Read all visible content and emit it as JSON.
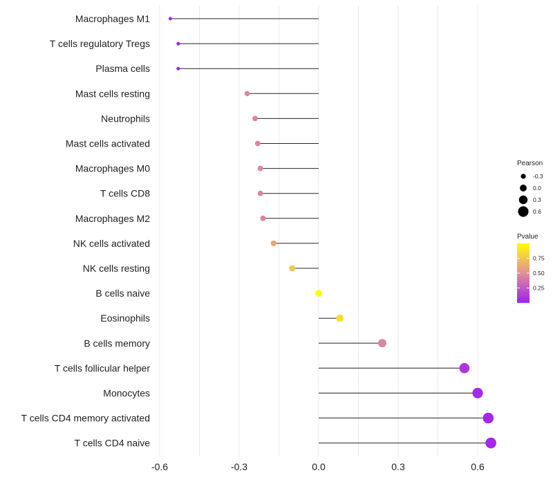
{
  "chart_data": {
    "type": "lollipop",
    "orientation": "horizontal",
    "categories": [
      "Macrophages M1",
      "T cells regulatory  Tregs",
      "Plasma cells",
      "Mast cells resting",
      "Neutrophils",
      "Mast cells activated",
      "Macrophages M0",
      "T cells CD8",
      "Macrophages M2",
      "NK cells activated",
      "NK cells resting",
      "B cells naive",
      "Eosinophils",
      "B cells memory",
      "T cells follicular helper",
      "Monocytes",
      "T cells CD4 memory activated",
      "T cells CD4 naive"
    ],
    "values": [
      -0.56,
      -0.53,
      -0.53,
      -0.27,
      -0.24,
      -0.23,
      -0.22,
      -0.22,
      -0.21,
      -0.17,
      -0.1,
      0.0,
      0.08,
      0.24,
      0.55,
      0.6,
      0.64,
      0.65
    ],
    "pvalues": [
      0.02,
      0.03,
      0.03,
      0.45,
      0.45,
      0.45,
      0.45,
      0.45,
      0.45,
      0.6,
      0.75,
      1.0,
      0.85,
      0.45,
      0.1,
      0.05,
      0.03,
      0.03
    ],
    "xlim": [
      -0.6,
      0.6
    ],
    "xticks": [
      -0.6,
      -0.3,
      0.0,
      0.3,
      0.6
    ],
    "xtick_labels": [
      "-0.6",
      "-0.3",
      "0.0",
      "0.3",
      "0.6"
    ],
    "grid": true,
    "size_legend": {
      "title": "Pearson",
      "values": [
        -0.3,
        0.0,
        0.3,
        0.6
      ],
      "labels": [
        "-0.3",
        "0.0",
        "0.3",
        "0.6"
      ]
    },
    "color_legend": {
      "title": "Pvalue",
      "ticks": [
        0.25,
        0.5,
        0.75
      ],
      "tick_labels": [
        "0.25",
        "0.50",
        "0.75"
      ],
      "range": [
        0.0,
        1.0
      ],
      "low_color": "#a020f0",
      "mid_color": "#e0909a",
      "high_color": "#ffff00"
    },
    "line_color": "#222222",
    "grid_color": "#ebebeb"
  }
}
